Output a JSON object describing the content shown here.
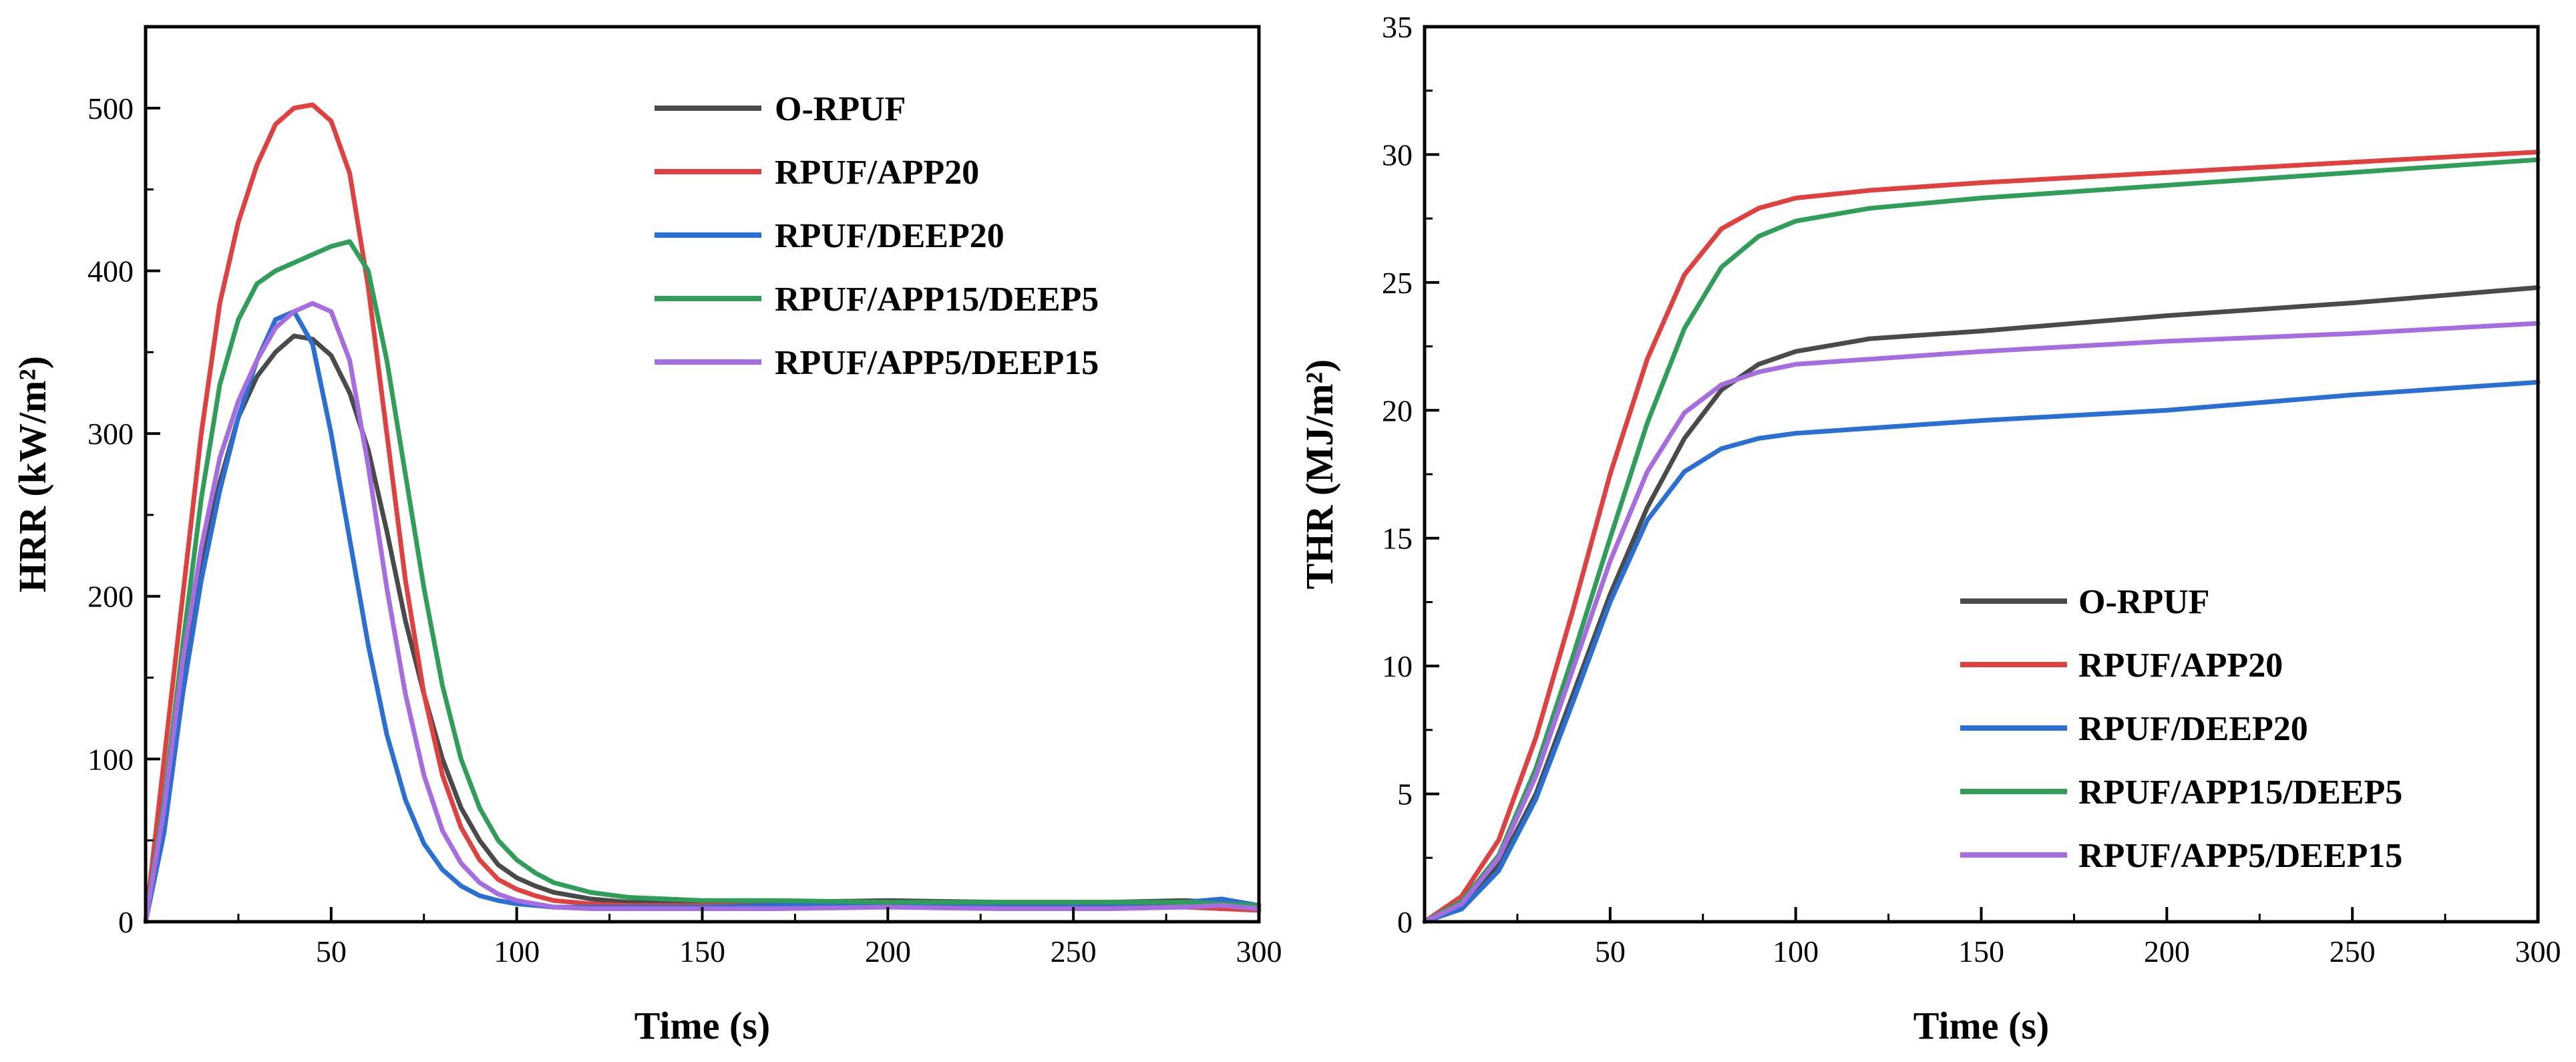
{
  "chart_data": [
    {
      "type": "line",
      "title": "",
      "xlabel": "Time (s)",
      "ylabel": "HRR (kW/m²)",
      "xlim": [
        0,
        300
      ],
      "ylim": [
        0,
        550
      ],
      "xticks": [
        50,
        100,
        150,
        200,
        250,
        300
      ],
      "yticks": [
        0,
        100,
        200,
        300,
        400,
        500
      ],
      "grid": false,
      "legend_position": "top-right",
      "series": [
        {
          "name": "O-RPUF",
          "color": "#4a4a4a",
          "x": [
            0,
            5,
            10,
            15,
            20,
            25,
            30,
            35,
            40,
            45,
            50,
            55,
            60,
            65,
            70,
            75,
            80,
            85,
            90,
            95,
            100,
            105,
            110,
            120,
            130,
            150,
            170,
            200,
            230,
            260,
            280,
            290,
            300
          ],
          "y": [
            0,
            60,
            150,
            220,
            270,
            310,
            335,
            350,
            360,
            358,
            348,
            325,
            290,
            240,
            185,
            140,
            100,
            70,
            50,
            35,
            27,
            22,
            18,
            14,
            12,
            12,
            12,
            13,
            12,
            12,
            13,
            12,
            10
          ]
        },
        {
          "name": "RPUF/APP20",
          "color": "#e0403e",
          "x": [
            0,
            5,
            10,
            15,
            20,
            25,
            30,
            35,
            40,
            45,
            50,
            55,
            60,
            65,
            70,
            75,
            80,
            85,
            90,
            95,
            100,
            105,
            110,
            120,
            130,
            150,
            170,
            200,
            230,
            260,
            280,
            290,
            300
          ],
          "y": [
            0,
            100,
            200,
            300,
            380,
            430,
            465,
            490,
            500,
            502,
            492,
            460,
            390,
            300,
            210,
            140,
            90,
            58,
            38,
            26,
            20,
            16,
            13,
            11,
            10,
            10,
            10,
            10,
            9,
            9,
            9,
            8,
            7
          ]
        },
        {
          "name": "RPUF/DEEP20",
          "color": "#2a6fd3",
          "x": [
            0,
            5,
            10,
            15,
            20,
            25,
            30,
            35,
            40,
            45,
            50,
            55,
            60,
            65,
            70,
            75,
            80,
            85,
            90,
            95,
            100,
            105,
            110,
            120,
            130,
            150,
            170,
            200,
            230,
            260,
            280,
            290,
            300
          ],
          "y": [
            0,
            55,
            140,
            210,
            265,
            310,
            345,
            370,
            375,
            355,
            300,
            235,
            170,
            115,
            75,
            48,
            32,
            22,
            16,
            13,
            11,
            10,
            9,
            9,
            9,
            9,
            10,
            11,
            11,
            11,
            12,
            14,
            10
          ]
        },
        {
          "name": "RPUF/APP15/DEEP5",
          "color": "#2f9e58",
          "x": [
            0,
            5,
            10,
            15,
            20,
            25,
            30,
            35,
            40,
            45,
            50,
            55,
            60,
            65,
            70,
            75,
            80,
            85,
            90,
            95,
            100,
            105,
            110,
            120,
            130,
            150,
            170,
            200,
            230,
            260,
            280,
            290,
            300
          ],
          "y": [
            0,
            75,
            170,
            260,
            330,
            370,
            392,
            400,
            405,
            410,
            415,
            418,
            400,
            345,
            275,
            205,
            145,
            100,
            70,
            50,
            38,
            30,
            24,
            18,
            15,
            13,
            13,
            12,
            12,
            12,
            12,
            11,
            10
          ]
        },
        {
          "name": "RPUF/APP5/DEEP15",
          "color": "#a56de0",
          "x": [
            0,
            5,
            10,
            15,
            20,
            25,
            30,
            35,
            40,
            45,
            50,
            55,
            60,
            65,
            70,
            75,
            80,
            85,
            90,
            95,
            100,
            105,
            110,
            120,
            130,
            150,
            170,
            200,
            230,
            260,
            280,
            290,
            300
          ],
          "y": [
            0,
            70,
            160,
            230,
            285,
            320,
            345,
            365,
            375,
            380,
            375,
            345,
            280,
            205,
            140,
            90,
            56,
            36,
            24,
            17,
            13,
            11,
            9,
            8,
            8,
            8,
            8,
            9,
            8,
            8,
            9,
            10,
            8
          ]
        }
      ]
    },
    {
      "type": "line",
      "title": "",
      "xlabel": "Time (s)",
      "ylabel": "THR (MJ/m²)",
      "xlim": [
        0,
        300
      ],
      "ylim": [
        0,
        35
      ],
      "xticks": [
        50,
        100,
        150,
        200,
        250,
        300
      ],
      "yticks": [
        0,
        5,
        10,
        15,
        20,
        25,
        30,
        35
      ],
      "grid": false,
      "legend_position": "bottom-right",
      "series": [
        {
          "name": "O-RPUF",
          "color": "#4a4a4a",
          "x": [
            0,
            10,
            20,
            30,
            40,
            50,
            60,
            70,
            80,
            90,
            100,
            120,
            150,
            200,
            250,
            300
          ],
          "y": [
            0,
            0.6,
            2.2,
            5.0,
            8.9,
            12.8,
            16.2,
            18.9,
            20.8,
            21.8,
            22.3,
            22.8,
            23.1,
            23.7,
            24.2,
            24.8
          ]
        },
        {
          "name": "RPUF/APP20",
          "color": "#e0403e",
          "x": [
            0,
            10,
            20,
            30,
            40,
            50,
            60,
            70,
            80,
            90,
            100,
            120,
            150,
            200,
            250,
            300
          ],
          "y": [
            0,
            1.0,
            3.2,
            7.2,
            12.2,
            17.5,
            22.0,
            25.3,
            27.1,
            27.9,
            28.3,
            28.6,
            28.9,
            29.3,
            29.7,
            30.1
          ]
        },
        {
          "name": "RPUF/DEEP20",
          "color": "#2a6fd3",
          "x": [
            0,
            10,
            20,
            30,
            40,
            50,
            60,
            70,
            80,
            90,
            100,
            120,
            150,
            200,
            250,
            300
          ],
          "y": [
            0,
            0.5,
            2.0,
            4.8,
            8.6,
            12.5,
            15.7,
            17.6,
            18.5,
            18.9,
            19.1,
            19.3,
            19.6,
            20.0,
            20.6,
            21.1
          ]
        },
        {
          "name": "RPUF/APP15/DEEP5",
          "color": "#2f9e58",
          "x": [
            0,
            10,
            20,
            30,
            40,
            50,
            60,
            70,
            80,
            90,
            100,
            120,
            150,
            200,
            250,
            300
          ],
          "y": [
            0,
            0.8,
            2.6,
            6.0,
            10.4,
            15.0,
            19.5,
            23.2,
            25.6,
            26.8,
            27.4,
            27.9,
            28.3,
            28.8,
            29.3,
            29.8
          ]
        },
        {
          "name": "RPUF/APP5/DEEP15",
          "color": "#a56de0",
          "x": [
            0,
            10,
            20,
            30,
            40,
            50,
            60,
            70,
            80,
            90,
            100,
            120,
            150,
            200,
            250,
            300
          ],
          "y": [
            0,
            0.7,
            2.5,
            5.7,
            9.9,
            14.1,
            17.6,
            19.9,
            21.0,
            21.5,
            21.8,
            22.0,
            22.3,
            22.7,
            23.0,
            23.4
          ]
        }
      ]
    }
  ]
}
